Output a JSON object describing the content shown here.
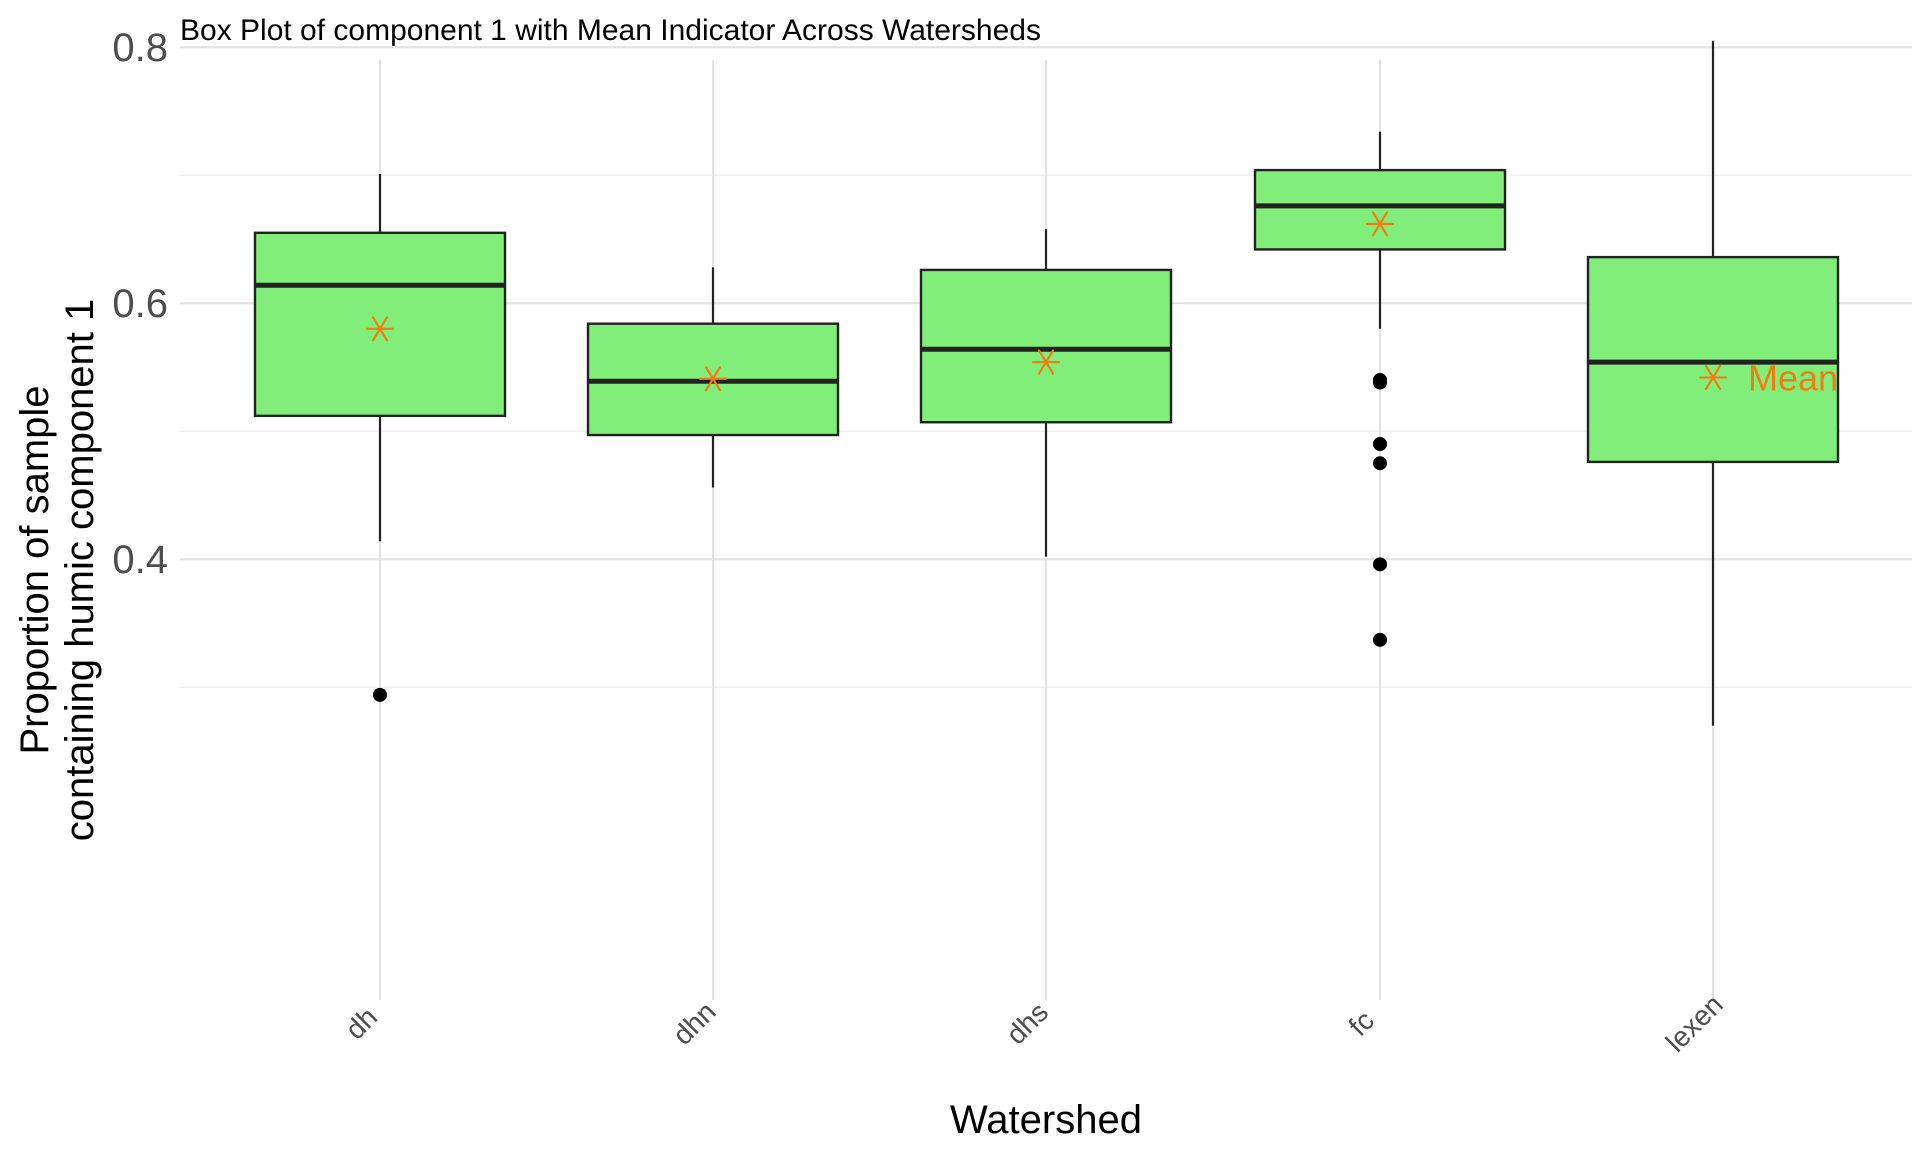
{
  "chart_data": {
    "type": "box",
    "title": "Box Plot of component 1 with Mean Indicator Across Watersheds",
    "xlabel": "Watershed",
    "ylabel_lines": [
      "Proportion of sample",
      "containing humic component 1"
    ],
    "ylim": [
      0.28,
      0.83
    ],
    "y_ticks": [
      0.4,
      0.6,
      0.8
    ],
    "y_tick_labels": [
      "0.4",
      "0.6",
      "0.8"
    ],
    "y_minor_ticks": [
      0.3,
      0.5,
      0.7
    ],
    "grid": true,
    "box_fill": "#82ee7a",
    "box_stroke": "#222222",
    "mean_color": "#f07d12",
    "outlier_color": "#000000",
    "mean_label": "Mean",
    "categories": [
      "dh",
      "dhn",
      "dhs",
      "fc",
      "lexen"
    ],
    "boxes": [
      {
        "category": "dh",
        "whisker_low": 0.414,
        "q1": 0.512,
        "median": 0.614,
        "q3": 0.655,
        "whisker_high": 0.701,
        "mean": 0.58,
        "outliers": [
          0.294
        ]
      },
      {
        "category": "dhn",
        "whisker_low": 0.456,
        "q1": 0.497,
        "median": 0.539,
        "q3": 0.584,
        "whisker_high": 0.628,
        "mean": 0.541,
        "outliers": []
      },
      {
        "category": "dhs",
        "whisker_low": 0.402,
        "q1": 0.507,
        "median": 0.564,
        "q3": 0.626,
        "whisker_high": 0.658,
        "mean": 0.554,
        "outliers": []
      },
      {
        "category": "fc",
        "whisker_low": 0.58,
        "q1": 0.642,
        "median": 0.676,
        "q3": 0.704,
        "whisker_high": 0.734,
        "mean": 0.662,
        "outliers": [
          0.54,
          0.538,
          0.49,
          0.475,
          0.396,
          0.337
        ]
      },
      {
        "category": "lexen",
        "whisker_low": 0.27,
        "q1": 0.476,
        "median": 0.554,
        "q3": 0.636,
        "whisker_high": 0.805,
        "mean": 0.542,
        "outliers": []
      }
    ]
  }
}
